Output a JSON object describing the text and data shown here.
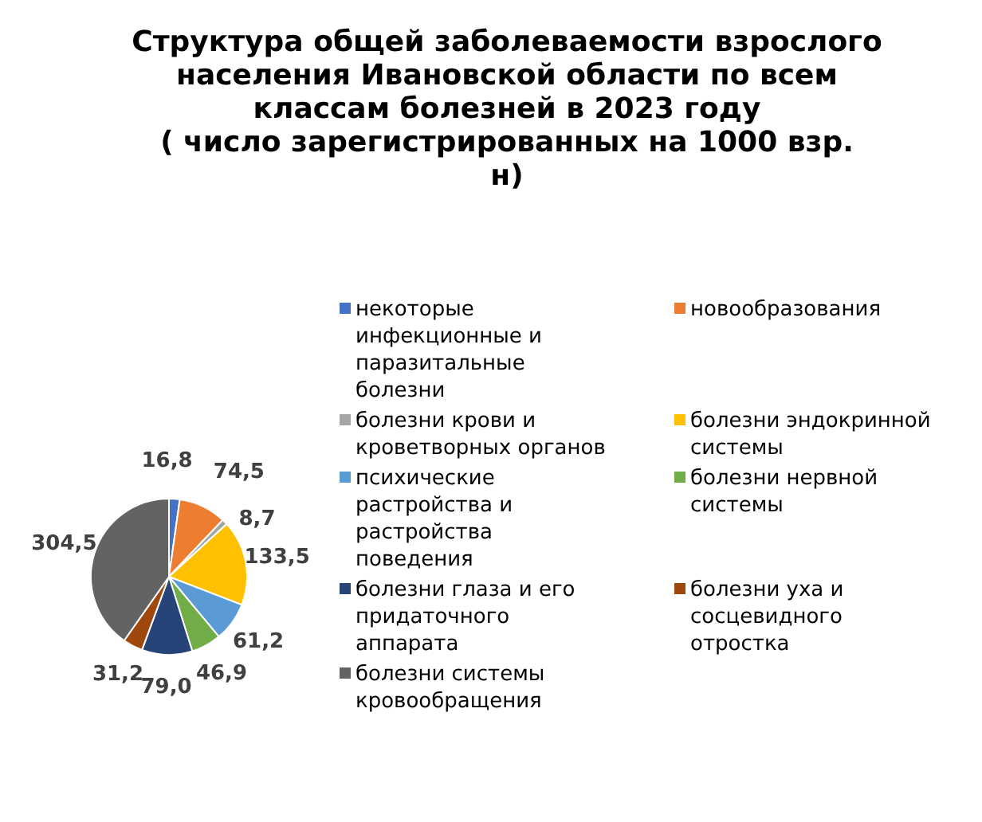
{
  "chart_data": {
    "type": "pie",
    "title": "Структура общей заболеваемости взрослого населения Ивановской области по всем классам болезней в 2023 году\n( число зарегистрированных на 1000 взр. н)",
    "categories": [
      "некоторые инфекционные и паразитальные болезни",
      "новообразования",
      "болезни крови и кроветворных органов",
      "болезни эндокринной системы",
      "психические растройства и растройства поведения",
      "болезни нервной системы",
      "болезни глаза и его придаточного аппарата",
      "болезни уха и сосцевидного отростка",
      "болезни системы кровообращения"
    ],
    "values": [
      16.8,
      74.5,
      8.7,
      133.5,
      61.2,
      46.9,
      79.0,
      31.2,
      304.5
    ],
    "value_labels": [
      "16,8",
      "74,5",
      "8,7",
      "133,5",
      "61,2",
      "46,9",
      "79,0",
      "31,2",
      "304,5"
    ],
    "colors": [
      "#4472c4",
      "#ed7d31",
      "#a5a5a5",
      "#ffc000",
      "#5b9bd5",
      "#70ad47",
      "#264478",
      "#9e480e",
      "#636363"
    ],
    "legend": "right"
  }
}
